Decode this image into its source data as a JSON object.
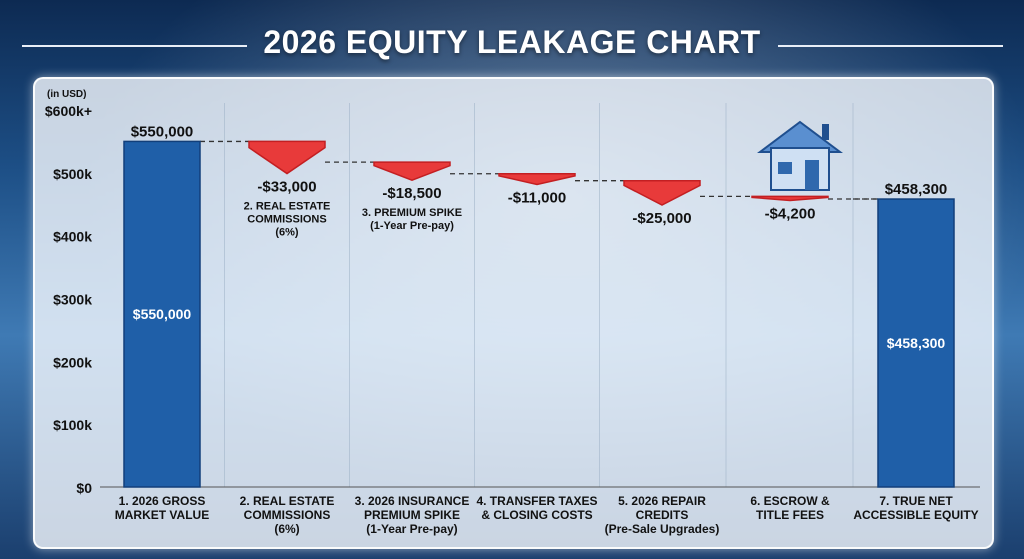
{
  "title": "2026 EQUITY LEAKAGE CHART",
  "chart_data": {
    "type": "bar",
    "subtype": "waterfall",
    "unit_label": "(in USD)",
    "y_ticks": [
      "$0",
      "$100k",
      "$200k",
      "$300k",
      "$400k",
      "$500k",
      "$600k+"
    ],
    "ylim": [
      0,
      600000
    ],
    "grid": false,
    "categories": [
      [
        "1. 2026 GROSS",
        "MARKET VALUE"
      ],
      [
        "2. REAL ESTATE",
        "COMMISSIONS",
        "(6%)"
      ],
      [
        "3. 2026 INSURANCE",
        "PREMIUM SPIKE",
        "(1-Year Pre-pay)"
      ],
      [
        "4. TRANSFER TAXES",
        "& CLOSING COSTS"
      ],
      [
        "5. 2026 REPAIR",
        "CREDITS",
        "(Pre-Sale Upgrades)"
      ],
      [
        "6. ESCROW &",
        "TITLE FEES"
      ],
      [
        "7. TRUE NET",
        "ACCESSIBLE EQUITY"
      ]
    ],
    "bars": [
      {
        "kind": "total",
        "start": 0,
        "end": 550000,
        "top_label": "$550,000",
        "inner_label": "$550,000"
      },
      {
        "kind": "decrease",
        "start": 550000,
        "end": 517000,
        "value_label": "-$33,000",
        "desc": [
          "2. REAL ESTATE",
          "COMMISSIONS",
          "(6%)"
        ]
      },
      {
        "kind": "decrease",
        "start": 517000,
        "end": 498500,
        "value_label": "-$18,500",
        "desc": [
          "3. PREMIUM SPIKE",
          "(1-Year Pre-pay)"
        ]
      },
      {
        "kind": "decrease",
        "start": 498500,
        "end": 487500,
        "value_label": "-$11,000",
        "desc": []
      },
      {
        "kind": "decrease",
        "start": 487500,
        "end": 462500,
        "value_label": "-$25,000",
        "desc": []
      },
      {
        "kind": "decrease",
        "start": 462500,
        "end": 458300,
        "value_label": "-$4,200",
        "desc": []
      },
      {
        "kind": "total",
        "start": 0,
        "end": 458300,
        "top_label": "$458,300",
        "inner_label": "$458,300"
      }
    ],
    "colors": {
      "total": "#1f5fa8",
      "total_dark": "#123f7a",
      "decrease": "#e83a3a",
      "decrease_dark": "#c31f22",
      "connector": "#333333"
    }
  }
}
